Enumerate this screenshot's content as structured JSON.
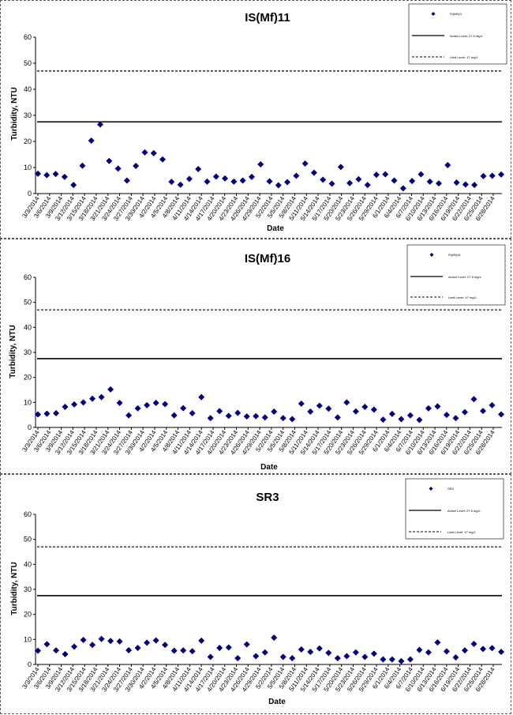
{
  "chart_data": [
    {
      "type": "scatter",
      "title": "IS(Mf)11",
      "xlabel": "Date",
      "ylabel": "Turbidity, NTU",
      "ylim": [
        0,
        60
      ],
      "yticks": [
        "0",
        "10",
        "20",
        "30",
        "40",
        "50",
        "60"
      ],
      "xticks": [
        "3/3/2014",
        "3/6/2014",
        "3/9/2014",
        "3/12/2014",
        "3/15/2014",
        "3/18/2014",
        "3/21/2014",
        "3/24/2014",
        "3/27/2014",
        "3/30/2014",
        "4/2/2014",
        "4/5/2014",
        "4/8/2014",
        "4/11/2014",
        "4/14/2014",
        "4/17/2014",
        "4/20/2014",
        "4/23/2014",
        "4/26/2014",
        "4/29/2014",
        "5/2/2014",
        "5/5/2014",
        "5/8/2014",
        "5/11/2014",
        "5/14/2014",
        "5/17/2014",
        "5/20/2014",
        "5/23/2014",
        "5/26/2014",
        "5/29/2014",
        "6/1/2014",
        "6/4/2014",
        "6/7/2014",
        "6/10/2014",
        "6/13/2014",
        "6/16/2014",
        "6/19/2014",
        "6/22/2014",
        "6/25/2014",
        "6/28/2014"
      ],
      "legend": {
        "placement": "top-right",
        "series": "IS(Mf)11",
        "action": "Action Level: 27.5 mg/L",
        "limit": "Limit Level: 47 mg/L"
      },
      "action_level": 27.5,
      "limit_level": 47,
      "series": [
        {
          "name": "IS(Mf)11",
          "values": [
            7.6,
            7.1,
            7.5,
            6.4,
            3.3,
            10.7,
            20.3,
            26.5,
            12.5,
            9.6,
            5.0,
            10.6,
            15.8,
            15.5,
            13.1,
            4.5,
            3.4,
            5.6,
            9.4,
            4.6,
            6.5,
            5.8,
            4.6,
            5.0,
            6.4,
            11.2,
            4.7,
            3.2,
            4.4,
            6.8,
            11.5,
            8.0,
            5.3,
            3.8,
            10.2,
            4.0,
            5.5,
            3.3,
            7.2,
            7.4,
            5.0,
            2.0,
            4.8,
            7.4,
            4.6,
            3.9,
            10.9,
            4.2,
            3.5,
            3.3,
            6.7,
            6.8,
            7.3
          ]
        }
      ]
    },
    {
      "type": "scatter",
      "title": "IS(Mf)16",
      "xlabel": "Date",
      "ylabel": "Turbidity, NTU",
      "ylim": [
        0,
        60
      ],
      "yticks": [
        "0",
        "10",
        "20",
        "30",
        "40",
        "50",
        "60"
      ],
      "xticks": [
        "3/3/2014",
        "3/6/2014",
        "3/9/2014",
        "3/12/2014",
        "3/15/2014",
        "3/18/2014",
        "3/21/2014",
        "3/24/2014",
        "3/27/2014",
        "3/30/2014",
        "4/2/2014",
        "4/5/2014",
        "4/8/2014",
        "4/11/2014",
        "4/14/2014",
        "4/17/2014",
        "4/20/2014",
        "4/23/2014",
        "4/26/2014",
        "4/29/2014",
        "5/2/2014",
        "5/5/2014",
        "5/8/2014",
        "5/11/2014",
        "5/14/2014",
        "5/17/2014",
        "5/20/2014",
        "5/23/2014",
        "5/26/2014",
        "5/29/2014",
        "6/1/2014",
        "6/4/2014",
        "6/7/2014",
        "6/10/2014",
        "6/13/2014",
        "6/16/2014",
        "6/19/2014",
        "6/22/2014",
        "6/25/2014",
        "6/28/2014"
      ],
      "legend": {
        "placement": "top-right",
        "series": "IS(Mf)16",
        "action": "Action Level: 27.5 mg/L",
        "limit": "Limit Level: 47 mg/L"
      },
      "action_level": 27.5,
      "limit_level": 47,
      "series": [
        {
          "name": "IS(Mf)16",
          "values": [
            5.2,
            5.5,
            5.7,
            8.2,
            9.2,
            10.0,
            11.5,
            12.1,
            15.2,
            9.8,
            4.8,
            7.6,
            8.9,
            9.8,
            9.3,
            4.8,
            7.7,
            5.7,
            12.1,
            3.7,
            6.5,
            4.6,
            5.8,
            4.4,
            4.5,
            4.0,
            6.3,
            3.7,
            3.3,
            9.5,
            6.3,
            8.7,
            7.5,
            4.0,
            10.0,
            6.4,
            8.2,
            7.1,
            3.1,
            5.4,
            3.3,
            4.8,
            3.0,
            7.6,
            8.4,
            5.0,
            3.7,
            6.1,
            11.3,
            6.6,
            8.9,
            5.2
          ]
        }
      ]
    },
    {
      "type": "scatter",
      "title": "SR3",
      "xlabel": "Date",
      "ylabel": "Turbidity, NTU",
      "ylim": [
        0,
        60
      ],
      "yticks": [
        "0",
        "10",
        "20",
        "30",
        "40",
        "50",
        "60"
      ],
      "xticks": [
        "3/3/2014",
        "3/6/2014",
        "3/9/2014",
        "3/12/2014",
        "3/15/2014",
        "3/18/2014",
        "3/21/2014",
        "3/24/2014",
        "3/27/2014",
        "3/30/2014",
        "4/2/2014",
        "4/5/2014",
        "4/8/2014",
        "4/11/2014",
        "4/14/2014",
        "4/17/2014",
        "4/20/2014",
        "4/23/2014",
        "4/26/2014",
        "4/29/2014",
        "5/2/2014",
        "5/5/2014",
        "5/8/2014",
        "5/11/2014",
        "5/14/2014",
        "5/17/2014",
        "5/20/2014",
        "5/23/2014",
        "5/26/2014",
        "5/29/2014",
        "6/1/2014",
        "6/4/2014",
        "6/7/2014",
        "6/10/2014",
        "6/13/2014",
        "6/16/2014",
        "6/19/2014",
        "6/22/2014",
        "6/25/2014",
        "6/28/2014"
      ],
      "legend": {
        "placement": "top-right",
        "series": "SR3",
        "action": "Action Level: 27.5 mg/L",
        "limit": "Limit Level: 47 mg/L"
      },
      "action_level": 27.5,
      "limit_level": 47,
      "series": [
        {
          "name": "SR3",
          "values": [
            5.5,
            8.1,
            5.6,
            4.1,
            7.1,
            9.8,
            7.8,
            10.2,
            9.4,
            9.2,
            5.7,
            6.6,
            8.7,
            9.6,
            7.8,
            5.5,
            5.6,
            5.3,
            9.5,
            3.0,
            6.6,
            6.8,
            2.5,
            8.0,
            3.3,
            4.8,
            10.7,
            3.0,
            2.5,
            6.0,
            5.0,
            6.4,
            4.6,
            2.5,
            3.3,
            4.8,
            3.0,
            4.3,
            2.0,
            2.0,
            1.3,
            2.0,
            5.8,
            4.8,
            8.8,
            5.2,
            2.8,
            5.6,
            8.2,
            6.2,
            6.5,
            5.0
          ]
        }
      ]
    }
  ],
  "colors": {
    "marker": "#00007F",
    "line": "#000000"
  }
}
